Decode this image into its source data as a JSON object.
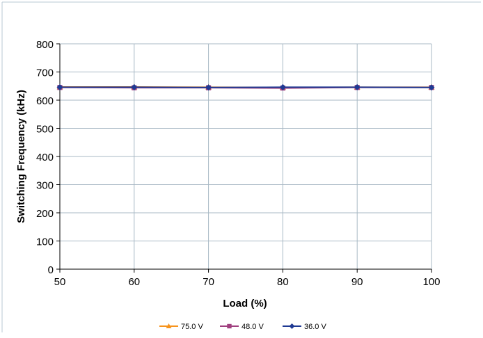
{
  "chart_data": {
    "type": "line",
    "title": "",
    "xlabel": "Load (%)",
    "ylabel": "Switching Frequency (kHz)",
    "x": [
      50,
      60,
      70,
      80,
      90,
      100
    ],
    "xlim": [
      50,
      100
    ],
    "ylim": [
      0,
      800
    ],
    "xticks": [
      "50",
      "60",
      "70",
      "80",
      "90",
      "100"
    ],
    "yticks": [
      "0",
      "100",
      "200",
      "300",
      "400",
      "500",
      "600",
      "700",
      "800"
    ],
    "grid": true,
    "legend_position": "bottom",
    "series": [
      {
        "name": "75.0 V",
        "values": [
          647,
          647,
          646,
          645,
          646,
          646
        ],
        "color": "#f7941d",
        "marker": "triangle"
      },
      {
        "name": "48.0 V",
        "values": [
          645,
          644,
          644,
          643,
          645,
          645
        ],
        "color": "#a0407f",
        "marker": "square"
      },
      {
        "name": "36.0 V",
        "values": [
          646,
          646,
          645,
          646,
          646,
          645
        ],
        "color": "#1f3a93",
        "marker": "diamond"
      }
    ]
  }
}
